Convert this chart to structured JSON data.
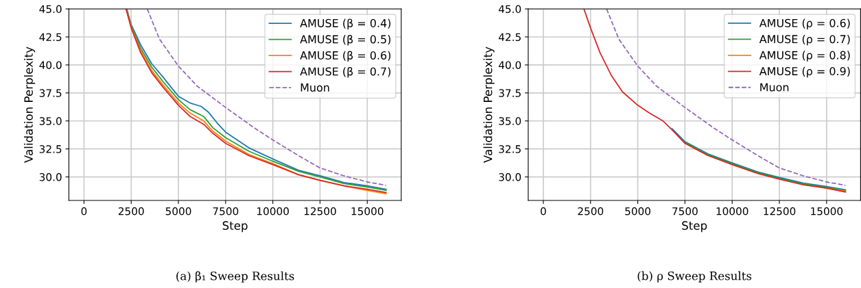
{
  "chart_data": [
    {
      "type": "line",
      "title": "(a) β₁ Sweep Results",
      "xlabel": "Step",
      "ylabel": "Validation Perplexity",
      "xlim": [
        -800,
        16800
      ],
      "ylim": [
        27.9,
        45
      ],
      "xticks": [
        0,
        2500,
        5000,
        7500,
        10000,
        12500,
        15000
      ],
      "yticks": [
        {
          "value": 30,
          "label": "30.0"
        },
        32.5,
        {
          "value": 35,
          "label": "35.0"
        },
        37.5,
        {
          "value": 40,
          "label": "40.0"
        },
        42.5,
        {
          "value": 45,
          "label": "45.0"
        }
      ],
      "grid": true,
      "legend": "top right",
      "series": [
        {
          "name": "AMUSE (β = 0.4)",
          "color": "#1f77b4",
          "x": [
            2270,
            2500,
            3000,
            3590,
            4190,
            5000,
            5620,
            6200,
            6580,
            7060,
            7500,
            8730,
            10000,
            11360,
            12500,
            13770,
            15000,
            16000
          ],
          "values": [
            45,
            43.6,
            41.8,
            40.1,
            38.9,
            37.2,
            36.6,
            36.3,
            35.8,
            34.8,
            34.0,
            32.6,
            31.6,
            30.6,
            30.1,
            29.5,
            29.2,
            28.9
          ]
        },
        {
          "name": "AMUSE (β = 0.5)",
          "color": "#2ca02c",
          "x": [
            2250,
            2500,
            3000,
            3590,
            4190,
            5000,
            5620,
            6340,
            6820,
            7500,
            8730,
            10000,
            11360,
            12500,
            13770,
            15000,
            16000
          ],
          "values": [
            45,
            43.5,
            41.5,
            39.8,
            38.5,
            36.9,
            36.0,
            35.4,
            34.4,
            33.5,
            32.3,
            31.4,
            30.5,
            30.0,
            29.4,
            29.1,
            28.8
          ]
        },
        {
          "name": "AMUSE (β = 0.6)",
          "color": "#ff7f0e",
          "x": [
            2240,
            2500,
            3000,
            3590,
            4190,
            5000,
            5620,
            6340,
            6820,
            7500,
            8730,
            10000,
            11360,
            12500,
            13770,
            15000,
            16000
          ],
          "values": [
            45,
            43.4,
            41.3,
            39.5,
            38.2,
            36.6,
            35.7,
            35.0,
            34.1,
            33.2,
            32.0,
            31.2,
            30.2,
            29.7,
            29.2,
            28.8,
            28.5
          ]
        },
        {
          "name": "AMUSE (β = 0.7)",
          "color": "#d62728",
          "x": [
            2225,
            2500,
            3000,
            3590,
            4190,
            5000,
            5620,
            6340,
            6820,
            7500,
            8730,
            10000,
            11360,
            12500,
            13770,
            15000,
            16000
          ],
          "values": [
            45,
            43.3,
            41.1,
            39.3,
            38.0,
            36.4,
            35.4,
            34.7,
            33.9,
            33.0,
            31.9,
            31.1,
            30.2,
            29.7,
            29.2,
            28.9,
            28.6
          ]
        },
        {
          "name": "Muon",
          "color": "#9467bd",
          "line_style": "dashed",
          "x": [
            3350,
            4000,
            5000,
            6000,
            7500,
            9000,
            10000,
            11360,
            12500,
            13770,
            15000,
            16000
          ],
          "values": [
            45,
            42.3,
            39.9,
            38.1,
            36.2,
            34.4,
            33.3,
            31.9,
            30.8,
            30.1,
            29.55,
            29.25
          ]
        }
      ]
    },
    {
      "type": "line",
      "title": "(b) ρ Sweep Results",
      "xlabel": "Step",
      "ylabel": "Validation Perplexity",
      "xlim": [
        -800,
        16800
      ],
      "ylim": [
        27.9,
        45
      ],
      "xticks": [
        0,
        2500,
        5000,
        7500,
        10000,
        12500,
        15000
      ],
      "yticks": [
        {
          "value": 30,
          "label": "30.0"
        },
        32.5,
        {
          "value": 35,
          "label": "35.0"
        },
        37.5,
        {
          "value": 40,
          "label": "40.0"
        },
        42.5,
        {
          "value": 45,
          "label": "45.0"
        }
      ],
      "grid": true,
      "legend": "top right",
      "series": [
        {
          "name": "AMUSE (ρ = 0.6)",
          "color": "#1f77b4",
          "x": [
            6820,
            7500,
            8730,
            10000,
            11360,
            12500,
            13770,
            15000,
            16000
          ],
          "values": [
            34.3,
            33.15,
            32.05,
            31.25,
            30.45,
            29.95,
            29.45,
            29.15,
            28.85
          ]
        },
        {
          "name": "AMUSE (ρ = 0.7)",
          "color": "#2ca02c",
          "x": [
            7500,
            8730,
            10000,
            11360,
            12500,
            13770,
            15000,
            16000
          ],
          "values": [
            33.08,
            31.98,
            31.18,
            30.38,
            29.88,
            29.38,
            29.08,
            28.78
          ]
        },
        {
          "name": "AMUSE (ρ = 0.8)",
          "color": "#ff7f0e",
          "x": [
            15000,
            16000
          ],
          "values": [
            29.0,
            28.72
          ]
        },
        {
          "name": "AMUSE (ρ = 0.9)",
          "color": "#d62728",
          "x": [
            2150,
            2500,
            3000,
            3590,
            4190,
            5000,
            5620,
            6340,
            6820,
            7500,
            8730,
            10000,
            11360,
            12500,
            13770,
            15000,
            16000
          ],
          "values": [
            45,
            43.3,
            41.1,
            39.1,
            37.6,
            36.4,
            35.7,
            35.0,
            34.2,
            33.0,
            31.9,
            31.1,
            30.3,
            29.8,
            29.3,
            29.0,
            28.65
          ]
        },
        {
          "name": "Muon",
          "color": "#9467bd",
          "line_style": "dashed",
          "x": [
            3350,
            4000,
            5000,
            6000,
            7500,
            9000,
            10000,
            11360,
            12500,
            13770,
            15000,
            16000
          ],
          "values": [
            45,
            42.3,
            39.9,
            38.1,
            36.2,
            34.4,
            33.3,
            31.9,
            30.8,
            30.1,
            29.55,
            29.25
          ]
        }
      ]
    }
  ]
}
